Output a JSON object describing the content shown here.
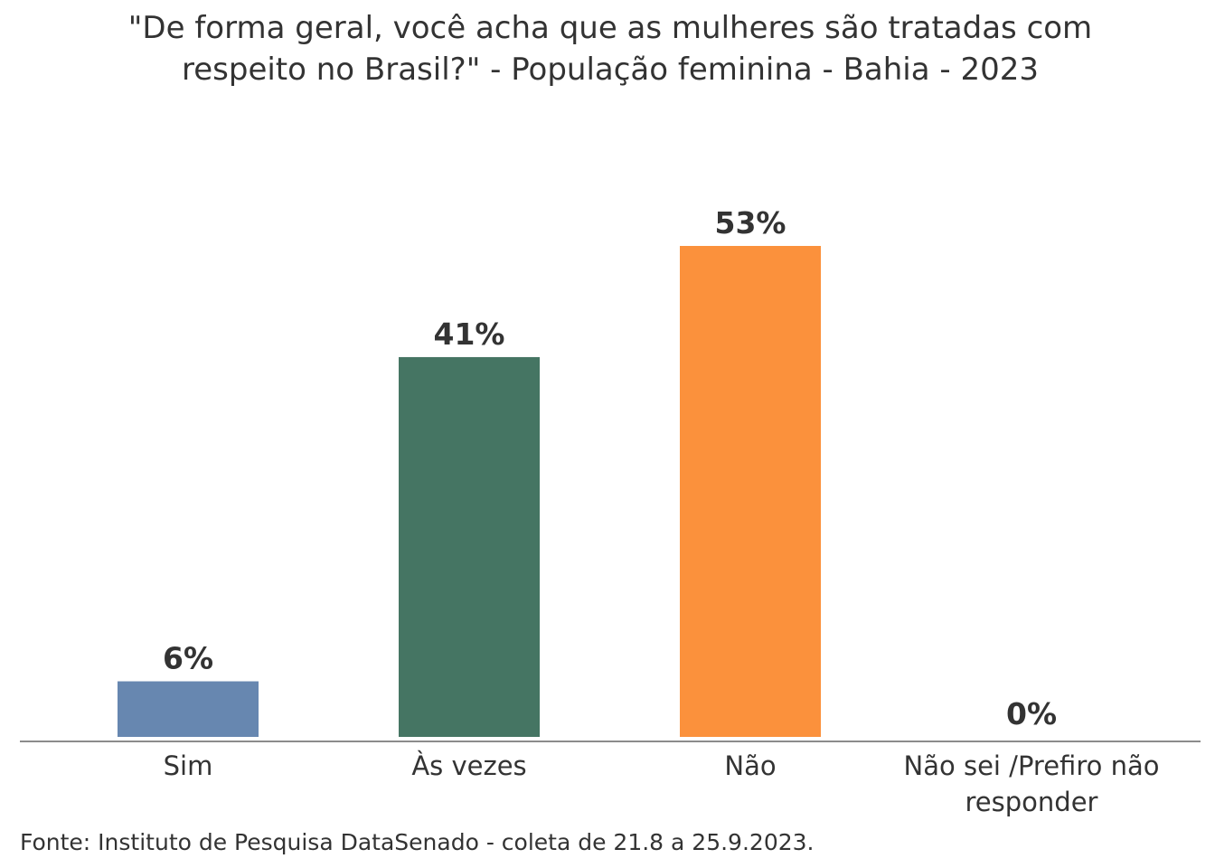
{
  "chart_data": {
    "type": "bar",
    "title_lines": [
      "\"De forma geral, você acha que as mulheres são tratadas com",
      "respeito no Brasil?\" - População feminina - Bahia - 2023"
    ],
    "categories": [
      [
        "Sim"
      ],
      [
        "Às vezes"
      ],
      [
        "Não"
      ],
      [
        "Não sei /Prefiro não",
        "responder"
      ]
    ],
    "values": [
      6,
      41,
      53,
      0
    ],
    "value_labels": [
      "6%",
      "41%",
      "53%",
      "0%"
    ],
    "colors": [
      "#6787B0",
      "#457563",
      "#FB913C",
      "#999999"
    ],
    "xlabel": "",
    "ylabel": "",
    "ylim": [
      0,
      55
    ],
    "grid": false,
    "legend": "none",
    "source": "Fonte: Instituto de Pesquisa DataSenado - coleta de 21.8 a 25.9.2023."
  }
}
